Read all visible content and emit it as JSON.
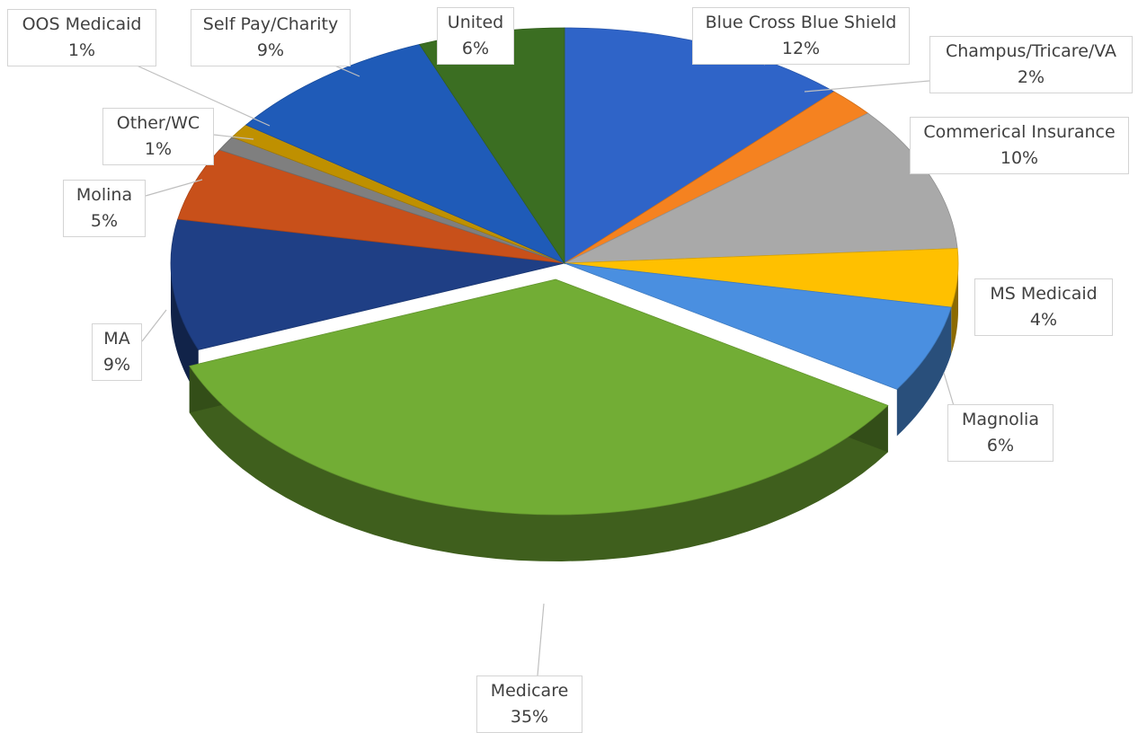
{
  "chart_data": {
    "type": "pie",
    "title": "",
    "slices": [
      {
        "label": "Blue Cross Blue Shield",
        "pct_text": "12%",
        "value": 12,
        "color": "#2f64c8"
      },
      {
        "label": "Champus/Tricare/VA",
        "pct_text": "2%",
        "value": 2,
        "color": "#f58220"
      },
      {
        "label": "Commerical Insurance",
        "pct_text": "10%",
        "value": 10,
        "color": "#a9a9a9"
      },
      {
        "label": "MS Medicaid",
        "pct_text": "4%",
        "value": 4,
        "color": "#ffc000"
      },
      {
        "label": "Magnolia",
        "pct_text": "6%",
        "value": 6,
        "color": "#4a8fe0"
      },
      {
        "label": "Medicare",
        "pct_text": "35%",
        "value": 35,
        "color": "#72ad35"
      },
      {
        "label": "MA",
        "pct_text": "9%",
        "value": 9,
        "color": "#1f3f85"
      },
      {
        "label": "Molina",
        "pct_text": "5%",
        "value": 5,
        "color": "#c8501a"
      },
      {
        "label": "Other/WC",
        "pct_text": "1%",
        "value": 1,
        "color": "#7f7f7f"
      },
      {
        "label": "OOS Medicaid",
        "pct_text": "1%",
        "value": 1,
        "color": "#bf9000"
      },
      {
        "label": "Self Pay/Charity",
        "pct_text": "9%",
        "value": 9,
        "color": "#1f5bb8"
      },
      {
        "label": "United",
        "pct_text": "6%",
        "value": 6,
        "color": "#3b6e22"
      }
    ],
    "exploded_slice": "Medicare",
    "legend": "none"
  }
}
